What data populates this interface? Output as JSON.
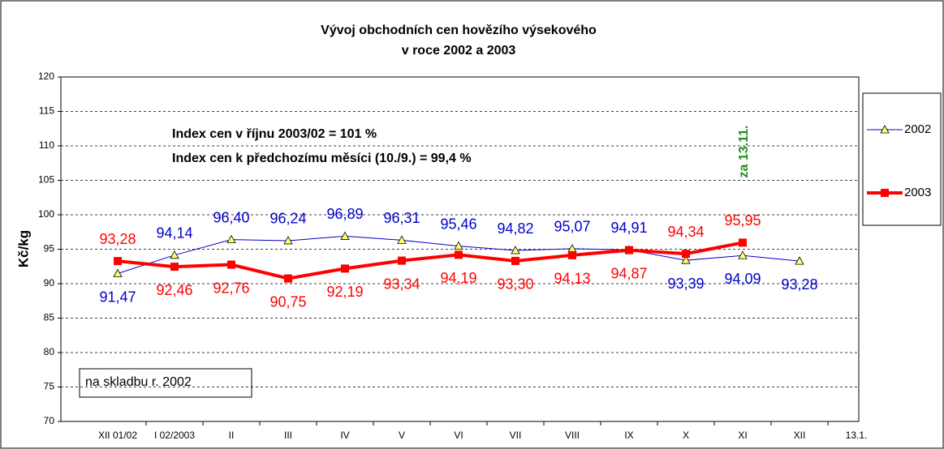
{
  "chart_data": {
    "type": "line",
    "title": [
      "Vývoj obchodních cen hovězího výsekového",
      "v roce 2002 a 2003"
    ],
    "y_label": "Kč/kg",
    "annotations": [
      "Index cen v říjnu 2003/02 = 101 %",
      "Index cen k předchozímu měsíci (10./9.) = 99,4 %",
      "za 13.11.",
      "na skladbu r. 2002"
    ],
    "categories": [
      "XII 01/02",
      "I 02/2003",
      "II",
      "III",
      "IV",
      "V",
      "VI",
      "VII",
      "VIII",
      "IX",
      "X",
      "XI",
      "XII",
      "13.1."
    ],
    "series": [
      {
        "name": "2002",
        "color": "#0000cc",
        "values": [
          91.47,
          94.14,
          96.4,
          96.24,
          96.89,
          96.31,
          95.46,
          94.82,
          95.07,
          94.91,
          93.39,
          94.09,
          93.28,
          null
        ],
        "value_labels": [
          "91,47",
          "94,14",
          "96,40",
          "96,24",
          "96,89",
          "96,31",
          "95,46",
          "94,82",
          "95,07",
          "94,91",
          "93,39",
          "94,09",
          "93,28",
          null
        ]
      },
      {
        "name": "2003",
        "color": "#ff0000",
        "values": [
          93.28,
          92.46,
          92.76,
          90.75,
          92.19,
          93.34,
          94.19,
          93.3,
          94.13,
          94.87,
          94.34,
          95.95,
          null,
          null
        ],
        "value_labels": [
          "93,28",
          "92,46",
          "92,76",
          "90,75",
          "92,19",
          "93,34",
          "94,19",
          "93,30",
          "94,13",
          "94,87",
          "94,34",
          "95,95",
          null,
          null
        ]
      }
    ],
    "ylim": [
      70,
      120
    ],
    "yticks": [
      70,
      75,
      80,
      85,
      90,
      95,
      100,
      105,
      110,
      115,
      120
    ],
    "grid": true
  }
}
